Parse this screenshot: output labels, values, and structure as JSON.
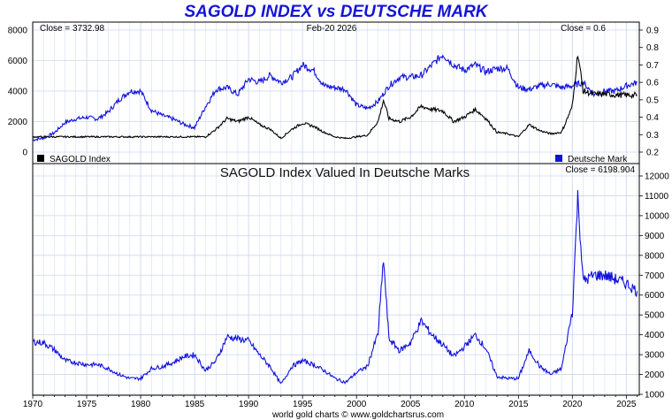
{
  "header": {
    "title": "SAGOLD INDEX vs DEUTSCHE MARK",
    "date": "Feb-20  2026",
    "footer": "world gold charts © www.goldchartsrus.com"
  },
  "colors": {
    "sagold": "#000000",
    "dmark": "#1010dd",
    "ratio": "#1010dd",
    "title": "#1414d8",
    "grid": "#ccd8f0"
  },
  "chart_data": [
    {
      "type": "line",
      "title": "SAGOLD INDEX vs DEUTSCHE MARK",
      "grid": true,
      "legend_position": "bottom",
      "left_axis": {
        "ylim": [
          0,
          8000
        ],
        "ticks": [
          "0",
          "2000",
          "4000",
          "6000",
          "8000"
        ]
      },
      "right_axis": {
        "ylim": [
          0.2,
          0.9
        ],
        "ticks": [
          "0.2",
          "0.3",
          "0.4",
          "0.5",
          "0.6",
          "0.7",
          "0.8",
          "0.9"
        ]
      },
      "close_left": "Close = 3732.98",
      "close_right": "Close = 0.6",
      "series": [
        {
          "name": "SAGOLD Index",
          "axis": "left",
          "color": "#000000",
          "x": [
            1970,
            1986,
            1987,
            1988,
            1989,
            1990,
            1991,
            1992,
            1993,
            1994,
            1995,
            1996,
            1997,
            1998,
            1999,
            2000,
            2001,
            2002,
            2002.5,
            2003,
            2004,
            2005,
            2006,
            2007,
            2008,
            2009,
            2010,
            2011,
            2012,
            2013,
            2014,
            2015,
            2016,
            2017,
            2018,
            2019,
            2020,
            2020.5,
            2021,
            2022,
            2023,
            2024,
            2025,
            2026
          ],
          "y": [
            1000,
            1000,
            1500,
            2200,
            2000,
            2300,
            1800,
            1500,
            900,
            1500,
            1900,
            1700,
            1300,
            1000,
            900,
            1000,
            1100,
            2000,
            3400,
            2200,
            2000,
            2300,
            3000,
            2800,
            2700,
            2000,
            2300,
            2800,
            2200,
            1300,
            1200,
            1000,
            1800,
            1400,
            1200,
            1300,
            3000,
            6500,
            4000,
            3800,
            3800,
            3750,
            3733,
            3733
          ]
        },
        {
          "name": "Deutsche Mark",
          "axis": "right",
          "color": "#1010dd",
          "x": [
            1970,
            1971,
            1972,
            1973,
            1974,
            1975,
            1976,
            1977,
            1978,
            1979,
            1980,
            1981,
            1982,
            1983,
            1984,
            1985,
            1986,
            1987,
            1988,
            1989,
            1990,
            1991,
            1992,
            1993,
            1994,
            1995,
            1996,
            1997,
            1998,
            1999,
            2000,
            2001,
            2002,
            2003,
            2004,
            2005,
            2006,
            2007,
            2008,
            2009,
            2010,
            2011,
            2012,
            2013,
            2014,
            2015,
            2016,
            2017,
            2018,
            2019,
            2020,
            2021,
            2022,
            2023,
            2024,
            2025,
            2026
          ],
          "y": [
            0.27,
            0.28,
            0.31,
            0.37,
            0.39,
            0.4,
            0.39,
            0.43,
            0.5,
            0.55,
            0.55,
            0.44,
            0.41,
            0.39,
            0.36,
            0.34,
            0.46,
            0.56,
            0.57,
            0.53,
            0.62,
            0.6,
            0.64,
            0.6,
            0.63,
            0.7,
            0.67,
            0.58,
            0.57,
            0.56,
            0.47,
            0.45,
            0.49,
            0.58,
            0.63,
            0.63,
            0.64,
            0.7,
            0.76,
            0.7,
            0.67,
            0.7,
            0.66,
            0.68,
            0.68,
            0.57,
            0.56,
            0.58,
            0.59,
            0.57,
            0.58,
            0.6,
            0.53,
            0.55,
            0.55,
            0.58,
            0.6
          ]
        }
      ]
    },
    {
      "type": "line",
      "title": "SAGOLD Index Valued In Deutsche Marks",
      "grid": true,
      "close": "Close = 6198.904",
      "ylim": [
        1000,
        12000
      ],
      "yticks": [
        "1000",
        "2000",
        "3000",
        "4000",
        "5000",
        "6000",
        "7000",
        "8000",
        "9000",
        "10000",
        "11000",
        "12000"
      ],
      "xticks": [
        "1970",
        "1975",
        "1980",
        "1985",
        "1990",
        "1995",
        "2000",
        "2005",
        "2010",
        "2015",
        "2020",
        "2025"
      ],
      "series": [
        {
          "name": "SAGOLD Index Valued In Deutsche Marks",
          "color": "#1010dd",
          "x": [
            1970,
            1971,
            1972,
            1973,
            1974,
            1975,
            1976,
            1977,
            1978,
            1979,
            1980,
            1981,
            1982,
            1983,
            1984,
            1985,
            1986,
            1987,
            1988,
            1989,
            1990,
            1991,
            1992,
            1993,
            1994,
            1995,
            1996,
            1997,
            1998,
            1999,
            2000,
            2001,
            2002,
            2002.5,
            2003,
            2004,
            2005,
            2006,
            2007,
            2008,
            2009,
            2010,
            2011,
            2012,
            2013,
            2014,
            2015,
            2016,
            2017,
            2018,
            2019,
            2020,
            2020.5,
            2021,
            2022,
            2023,
            2024,
            2025,
            2026
          ],
          "y": [
            3650,
            3600,
            3250,
            2700,
            2600,
            2500,
            2500,
            2300,
            2000,
            1800,
            1800,
            2300,
            2400,
            2600,
            2900,
            3000,
            2200,
            2700,
            3900,
            3800,
            3700,
            3000,
            2400,
            1500,
            2400,
            2700,
            2500,
            2200,
            1800,
            1600,
            2100,
            2400,
            4100,
            7800,
            3800,
            3200,
            3600,
            4700,
            4000,
            3500,
            2900,
            3400,
            4000,
            3300,
            1900,
            1800,
            1800,
            3200,
            2400,
            2000,
            2300,
            5200,
            11000,
            6700,
            7000,
            7000,
            6800,
            6600,
            6200
          ]
        }
      ]
    }
  ]
}
